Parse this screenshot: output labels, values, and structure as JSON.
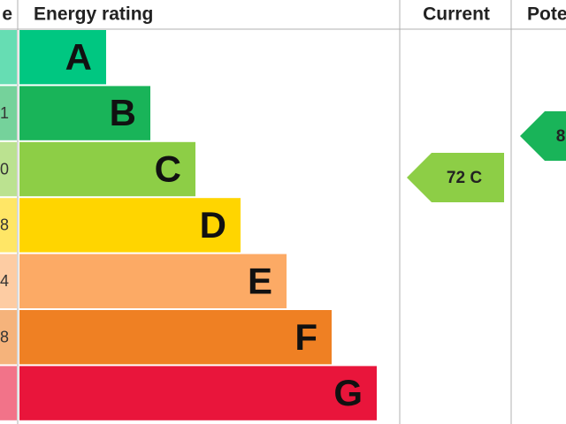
{
  "header": {
    "score": "e",
    "rating": "Energy rating",
    "current": "Current",
    "potential": "Pote"
  },
  "bands": [
    {
      "letter": "A"
    },
    {
      "letter": "B",
      "score": "1"
    },
    {
      "letter": "C",
      "score": "0"
    },
    {
      "letter": "D",
      "score": "8"
    },
    {
      "letter": "E",
      "score": "4"
    },
    {
      "letter": "F",
      "score": "8"
    },
    {
      "letter": "G"
    }
  ],
  "current": {
    "label": "72 C"
  },
  "potential": {
    "label": "8"
  }
}
